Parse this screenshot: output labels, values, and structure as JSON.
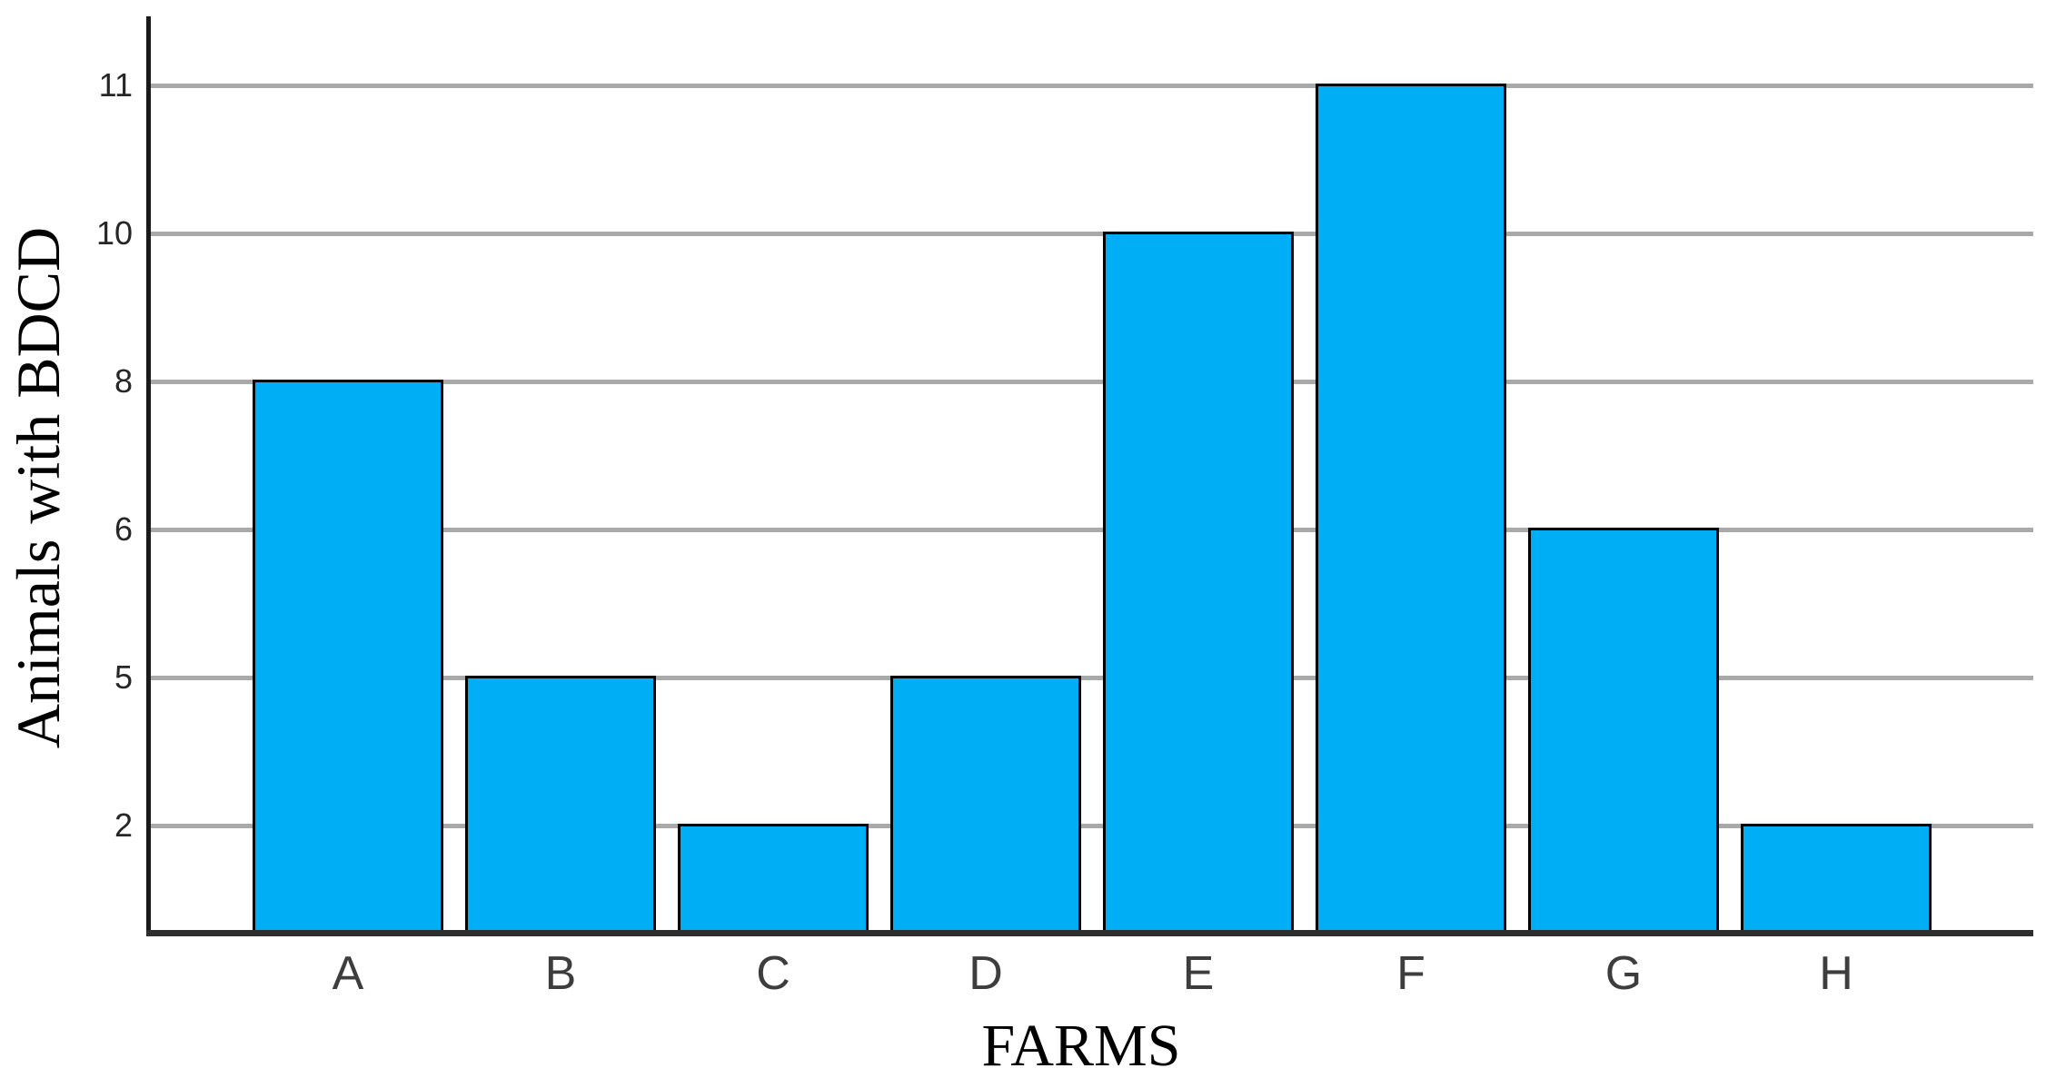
{
  "chart_data": {
    "type": "bar",
    "title": "",
    "categories": [
      "A",
      "B",
      "C",
      "D",
      "E",
      "F",
      "G",
      "H"
    ],
    "values": [
      8,
      5,
      2,
      5,
      10,
      11,
      6,
      2
    ],
    "xlabel": "FARMS",
    "ylabel": "Animals with BDCD",
    "yticks": [
      2,
      5,
      6,
      8,
      10,
      11
    ],
    "grid": "horizontal",
    "legend": "none",
    "axis_note": "horizontal gridlines evenly spaced at the distinct data values (ordinal value axis)",
    "colors": {
      "bar_fill": "#00AEF5",
      "bar_border": "#000000",
      "gridline": "#A9A9A9",
      "y_axis_line": "#1A1A1A",
      "x_axis_line": "#2E2E2E",
      "tick_label": "#262626",
      "title_text": "#000000"
    }
  }
}
